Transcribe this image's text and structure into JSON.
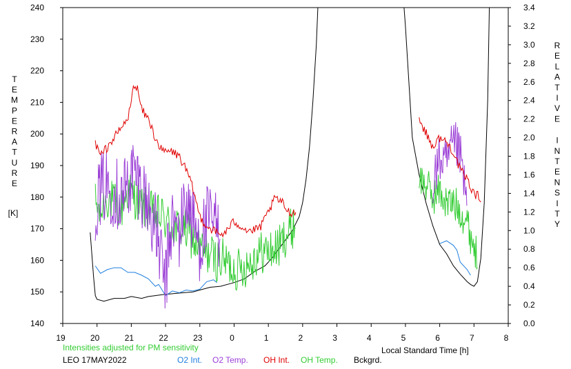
{
  "chart_data": {
    "type": "line",
    "title": "",
    "left_axis": {
      "label_letters": [
        "T",
        "E",
        "M",
        "P",
        "E",
        "R",
        "A",
        "T",
        "U",
        "R",
        "E"
      ],
      "unit": "[K]",
      "range": [
        140,
        240
      ],
      "ticks": [
        140,
        150,
        160,
        170,
        180,
        190,
        200,
        210,
        220,
        230,
        240
      ]
    },
    "right_axis": {
      "label_letters": [
        "R",
        "E",
        "L",
        "A",
        "T",
        "I",
        "V",
        "E",
        "I",
        "N",
        "T",
        "E",
        "N",
        "S",
        "I",
        "T",
        "Y"
      ],
      "range": [
        0.0,
        3.4
      ],
      "ticks": [
        "0.0",
        "0.2",
        "0.4",
        "0.6",
        "0.8",
        "1.0",
        "1.2",
        "1.4",
        "1.6",
        "1.8",
        "2.0",
        "2.2",
        "2.4",
        "2.6",
        "2.8",
        "3.0",
        "3.2",
        "3.4"
      ]
    },
    "x_axis": {
      "label": "Local Standard Time [h]",
      "range": [
        19,
        32
      ],
      "ticks": [
        "19",
        "20",
        "21",
        "22",
        "23",
        "0",
        "1",
        "2",
        "3",
        "4",
        "5",
        "6",
        "7",
        "8"
      ]
    },
    "note": "Intensities adjusted for PM sensitivity",
    "station": "LEO 17MAY2022",
    "colors": {
      "o2int": "#1f7fdf",
      "o2temp": "#9b3fd6",
      "ohint": "#e00000",
      "ohtemp": "#33cc33",
      "bkg": "#000000"
    },
    "series": [
      {
        "key": "o2int",
        "name": "O2 Int.",
        "axis": "right",
        "segments": [
          {
            "x": [
              19.95,
              20.1,
              20.3,
              20.5,
              20.7,
              20.9,
              21.1,
              21.3,
              21.5,
              21.7,
              21.8,
              21.9,
              22.0,
              22.2,
              22.4,
              22.6,
              22.8,
              23.0,
              23.2,
              23.4,
              23.5
            ],
            "y": [
              0.62,
              0.54,
              0.58,
              0.6,
              0.6,
              0.55,
              0.55,
              0.52,
              0.48,
              0.4,
              0.42,
              0.36,
              0.3,
              0.35,
              0.33,
              0.36,
              0.35,
              0.37,
              0.45,
              0.47,
              0.44
            ]
          },
          {
            "x": [
              6.0,
              6.2,
              6.4,
              6.5,
              6.6,
              6.8,
              6.9
            ],
            "y": [
              0.86,
              0.89,
              0.84,
              0.79,
              0.66,
              0.58,
              0.52
            ]
          }
        ]
      },
      {
        "key": "o2temp",
        "name": "O2 Temp.",
        "axis": "left",
        "segments": [
          {
            "x": [
              19.95,
              20.1,
              20.3,
              20.5,
              20.7,
              20.9,
              21.05,
              21.2,
              21.4,
              21.6,
              21.8,
              21.9,
              22.0,
              22.1,
              22.2,
              22.4,
              22.6,
              22.8,
              23.0,
              23.2,
              23.4,
              23.6
            ],
            "y": [
              178,
              182,
              184,
              182,
              180,
              184,
              188,
              185,
              180,
              174,
              165,
              158,
              152,
              166,
              172,
              168,
              180,
              172,
              165,
              172,
              172,
              168
            ],
            "noise": 12
          },
          {
            "x": [
              5.8,
              6.0,
              6.2,
              6.35,
              6.5,
              6.65,
              6.8
            ],
            "y": [
              185,
              192,
              190,
              195,
              196,
              190,
              176
            ],
            "noise": 8
          }
        ]
      },
      {
        "key": "ohint",
        "name": "OH Int.",
        "axis": "right",
        "segments": [
          {
            "x": [
              19.95,
              20.1,
              20.3,
              20.5,
              20.7,
              20.9,
              21.0,
              21.1,
              21.2,
              21.3,
              21.5,
              21.7,
              21.9,
              22.0,
              22.2,
              22.4,
              22.6,
              22.8,
              23.0,
              23.2,
              23.4,
              23.6,
              23.8,
              0.0,
              0.2,
              0.4,
              0.6,
              0.8,
              1.0,
              1.2,
              1.4,
              1.6,
              1.8
            ],
            "y": [
              1.95,
              1.8,
              1.9,
              2.0,
              2.1,
              2.2,
              2.4,
              2.6,
              2.5,
              2.3,
              2.2,
              2.0,
              1.85,
              1.85,
              1.85,
              1.8,
              1.65,
              1.45,
              1.15,
              1.05,
              1.0,
              0.95,
              1.0,
              1.1,
              1.05,
              1.0,
              1.0,
              1.05,
              1.2,
              1.35,
              1.3,
              1.2,
              1.2
            ],
            "noise": 0.05
          },
          {
            "x": [
              5.4,
              5.6,
              5.8,
              6.0,
              6.2,
              6.4,
              6.6,
              6.8,
              7.0,
              7.2
            ],
            "y": [
              2.2,
              2.05,
              1.9,
              2.0,
              1.95,
              1.85,
              1.65,
              1.55,
              1.4,
              1.35
            ],
            "noise": 0.05
          }
        ]
      },
      {
        "key": "ohtemp",
        "name": "OH Temp.",
        "axis": "left",
        "segments": [
          {
            "x": [
              19.95,
              20.1,
              20.3,
              20.5,
              20.7,
              20.9,
              21.1,
              21.3,
              21.5,
              21.7,
              21.9,
              22.1,
              22.3,
              22.5,
              22.7,
              22.9,
              23.1,
              23.3,
              23.5,
              23.7,
              23.9,
              0.1,
              0.3,
              0.5,
              0.7,
              0.9,
              1.1,
              1.3,
              1.5,
              1.7,
              1.8
            ],
            "y": [
              178,
              175,
              180,
              178,
              176,
              182,
              180,
              177,
              176,
              174,
              174,
              171,
              170,
              170,
              168,
              165,
              163,
              162,
              160,
              160,
              158,
              157,
              158,
              160,
              162,
              163,
              163,
              164,
              168,
              170,
              172
            ],
            "noise": 7
          },
          {
            "x": [
              5.4,
              5.6,
              5.8,
              6.0,
              6.2,
              6.4,
              6.6,
              6.8,
              6.9,
              7.0,
              7.1
            ],
            "y": [
              186,
              184,
              180,
              182,
              178,
              178,
              176,
              172,
              168,
              165,
              160
            ],
            "noise": 6
          }
        ]
      },
      {
        "key": "bkg",
        "name": "Bckgrd.",
        "axis": "right",
        "segments": [
          {
            "x": [
              19.8,
              19.9,
              19.95,
              20.0,
              20.2,
              20.5,
              20.8,
              21.0,
              21.3,
              21.5,
              21.7,
              21.9,
              22.2,
              22.5,
              22.8,
              23.0,
              23.3,
              23.6,
              0.0,
              0.3,
              0.6,
              0.9,
              1.1,
              1.3,
              1.5,
              1.7,
              1.9,
              2.0,
              2.1,
              2.2,
              2.3,
              2.4,
              2.45
            ],
            "y": [
              0.98,
              0.5,
              0.3,
              0.26,
              0.24,
              0.27,
              0.27,
              0.29,
              0.27,
              0.29,
              0.3,
              0.31,
              0.32,
              0.33,
              0.34,
              0.36,
              0.39,
              0.4,
              0.44,
              0.48,
              0.56,
              0.62,
              0.7,
              0.8,
              0.9,
              1.0,
              1.15,
              1.3,
              1.55,
              1.9,
              2.4,
              3.0,
              3.45
            ]
          },
          {
            "x": [
              4.95,
              5.0,
              5.2,
              5.4,
              5.6,
              5.8,
              6.0,
              6.2,
              6.4,
              6.6,
              6.8,
              6.9,
              7.0,
              7.1,
              7.2,
              7.3,
              7.4,
              7.45
            ],
            "y": [
              3.45,
              3.2,
              2.0,
              1.6,
              1.3,
              1.05,
              0.85,
              0.75,
              0.62,
              0.53,
              0.45,
              0.42,
              0.4,
              0.45,
              0.7,
              1.3,
              2.4,
              3.45
            ]
          }
        ]
      }
    ]
  }
}
